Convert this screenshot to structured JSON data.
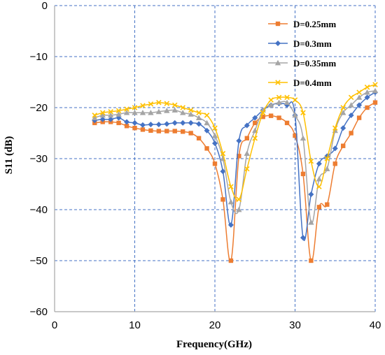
{
  "chart_data": {
    "type": "line",
    "xlabel": "Frequency(GHz)",
    "ylabel": "S11  (dB)",
    "xlim": [
      0,
      40
    ],
    "ylim": [
      -60,
      0
    ],
    "xticks": [
      0,
      10,
      20,
      30,
      40
    ],
    "yticks": [
      0,
      -10,
      -20,
      -30,
      -40,
      -50,
      -60
    ],
    "xtick_labels": [
      "0",
      "10",
      "20",
      "30",
      "40"
    ],
    "ytick_labels": [
      "0",
      "−10",
      "−20",
      "−30",
      "−40",
      "−50",
      "−60"
    ],
    "grid": true,
    "legend_position": "top-right",
    "series": [
      {
        "name": "D=0.25mm",
        "color": "#ED7D31",
        "marker": "square",
        "x": [
          5,
          6,
          7,
          8,
          9,
          10,
          11,
          12,
          13,
          14,
          15,
          16,
          17,
          18,
          19,
          20,
          21,
          22,
          23,
          24,
          25,
          26,
          27,
          28,
          29,
          30,
          31,
          32,
          33,
          34,
          35,
          36,
          37,
          38,
          39,
          40
        ],
        "y": [
          -23,
          -22.8,
          -22.8,
          -23,
          -23.6,
          -24,
          -24.3,
          -24.5,
          -24.6,
          -24.6,
          -24.6,
          -24.7,
          -25,
          -26,
          -28,
          -31,
          -38,
          -50,
          -29.5,
          -26,
          -23,
          -21.8,
          -21.6,
          -22,
          -23,
          -25.5,
          -33,
          -50,
          -39.5,
          -39,
          -31,
          -27.5,
          -25,
          -22,
          -20,
          -19
        ]
      },
      {
        "name": "D=0.3mm",
        "color": "#4472C4",
        "marker": "diamond",
        "x": [
          5,
          6,
          7,
          8,
          9,
          10,
          11,
          12,
          13,
          14,
          15,
          16,
          17,
          18,
          19,
          20,
          21,
          22,
          23,
          24,
          25,
          26,
          27,
          28,
          29,
          30,
          31,
          32,
          33,
          34,
          35,
          36,
          37,
          38,
          39,
          40
        ],
        "y": [
          -22.5,
          -22.3,
          -22.3,
          -22,
          -22.8,
          -23,
          -23.4,
          -23.3,
          -23.3,
          -23.2,
          -23,
          -23,
          -23,
          -23.2,
          -24.5,
          -27,
          -32.5,
          -43,
          -26.5,
          -23.5,
          -22,
          -20.5,
          -19.5,
          -19.2,
          -19.5,
          -21.5,
          -45.5,
          -37,
          -31,
          -29.5,
          -28,
          -24,
          -21.5,
          -19.5,
          -18,
          -17
        ]
      },
      {
        "name": "D=0.35mm",
        "color": "#A5A5A5",
        "marker": "triangle",
        "x": [
          5,
          6,
          7,
          8,
          9,
          10,
          11,
          12,
          13,
          14,
          15,
          16,
          17,
          18,
          19,
          20,
          21,
          22,
          23,
          24,
          25,
          26,
          27,
          28,
          29,
          30,
          31,
          32,
          33,
          34,
          35,
          36,
          37,
          38,
          39,
          40
        ],
        "y": [
          -22,
          -21.5,
          -21.5,
          -21.3,
          -21,
          -21,
          -21,
          -21,
          -20.8,
          -20.6,
          -20.5,
          -21,
          -21.3,
          -22,
          -23,
          -25.5,
          -30,
          -38.5,
          -40,
          -29,
          -24.5,
          -20.5,
          -19.5,
          -19,
          -19,
          -21.5,
          -26,
          -42.5,
          -34,
          -32,
          -24.5,
          -21,
          -19.5,
          -18,
          -17,
          -16.7
        ]
      },
      {
        "name": "D=0.4mm",
        "color": "#FFC000",
        "marker": "x",
        "x": [
          5,
          6,
          7,
          8,
          9,
          10,
          11,
          12,
          13,
          14,
          15,
          16,
          17,
          18,
          19,
          20,
          21,
          22,
          23,
          24,
          25,
          26,
          27,
          28,
          29,
          30,
          31,
          32,
          33,
          34,
          35,
          36,
          37,
          38,
          39,
          40
        ],
        "y": [
          -21.5,
          -21,
          -20.8,
          -20.6,
          -20.3,
          -20,
          -19.6,
          -19.3,
          -19,
          -19.2,
          -19.5,
          -20,
          -20.5,
          -21,
          -21.5,
          -24,
          -29,
          -35.5,
          -38,
          -32,
          -26,
          -21,
          -18.5,
          -18,
          -18,
          -18.5,
          -21,
          -30.5,
          -35.5,
          -30,
          -24,
          -20,
          -18,
          -17,
          -16,
          -15.5
        ]
      }
    ]
  }
}
